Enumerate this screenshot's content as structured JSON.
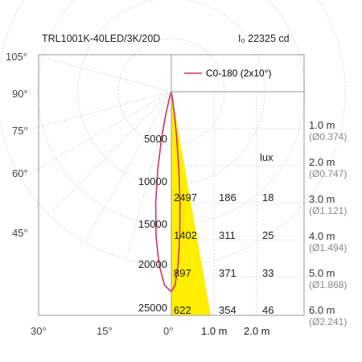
{
  "header": {
    "product": "TRL1001K-40LED/3K/20D",
    "intensity": "I₀ 22325 cd"
  },
  "legend": {
    "label": "C0-180 (2x10°)",
    "line_color": "#d2335c"
  },
  "colors": {
    "frame": "#9a9a9a",
    "grid": "#cfcfcf",
    "text": "#333333",
    "secondary_text": "#888888",
    "beam_fill": "#ffee00",
    "curve": "#d2335c"
  },
  "polar_labels": [
    "105°",
    "90°",
    "75°",
    "60°",
    "45°",
    "30°",
    "15°",
    "0°"
  ],
  "radial_scale": [
    "5000",
    "10000",
    "15000",
    "20000",
    "25000"
  ],
  "bottom_axis": [
    "1.0 m",
    "2.0 m"
  ],
  "lux_header": "lux",
  "lux_table": [
    {
      "c1": "2497",
      "c2": "186",
      "c3": "18"
    },
    {
      "c1": "1402",
      "c2": "311",
      "c3": "25"
    },
    {
      "c1": "897",
      "c2": "371",
      "c3": "33"
    },
    {
      "c1": "622",
      "c2": "354",
      "c3": "46"
    }
  ],
  "distances": [
    {
      "d": "1.0 m",
      "dia": "(Ø0.374)"
    },
    {
      "d": "2.0 m",
      "dia": "(Ø0.747)"
    },
    {
      "d": "3.0 m",
      "dia": "(Ø1.121)"
    },
    {
      "d": "4.0 m",
      "dia": "(Ø1.494)"
    },
    {
      "d": "5.0 m",
      "dia": "(Ø1.868)"
    },
    {
      "d": "6.0 m",
      "dia": "(Ø2.241)"
    }
  ],
  "chart_data": {
    "type": "polar",
    "intensity_scale_cd": [
      5000,
      10000,
      15000,
      20000,
      25000
    ],
    "series": [
      {
        "name": "C0-180 (2x10°)",
        "angles_deg": [
          0,
          2,
          4,
          6,
          8,
          10,
          12,
          14,
          16
        ],
        "values_cd": [
          22325,
          21600,
          19400,
          16300,
          12600,
          8700,
          5200,
          2500,
          800
        ]
      }
    ],
    "beam_diameter_m": [
      0.374,
      0.747,
      1.121,
      1.494,
      1.868,
      2.241
    ],
    "distance_m": [
      1.0,
      2.0,
      3.0,
      4.0,
      5.0,
      6.0
    ]
  }
}
